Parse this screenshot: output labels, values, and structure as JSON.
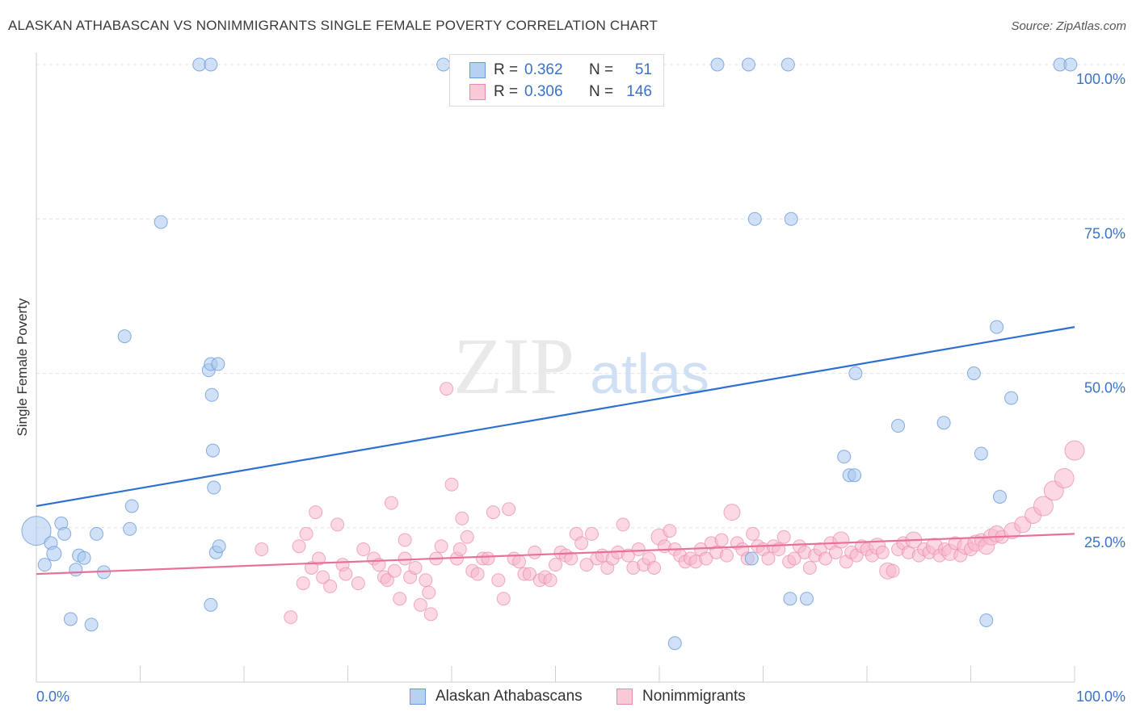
{
  "title": "ALASKAN ATHABASCAN VS NONIMMIGRANTS SINGLE FEMALE POVERTY CORRELATION CHART",
  "source": "Source: ZipAtlas.com",
  "watermark": {
    "zip": "ZIP",
    "atlas": "atlas"
  },
  "legend": {
    "rows": [
      {
        "r_label": "R =",
        "r_value": "0.362",
        "n_label": "N =",
        "n_value": "51",
        "color": "#a9c8f0",
        "border": "#6a9bd8"
      },
      {
        "r_label": "R =",
        "r_value": "0.306",
        "n_label": "N =",
        "n_value": "146",
        "color": "#f9bfd1",
        "border": "#e98aab"
      }
    ]
  },
  "bottom_legend": [
    {
      "label": "Alaskan Athabascans",
      "color": "#b7d1f3",
      "border": "#6a9bd8"
    },
    {
      "label": "Nonimmigrants",
      "color": "#f9c9d7",
      "border": "#e98aab"
    }
  ],
  "chart_data": {
    "type": "scatter",
    "title": "ALASKAN ATHABASCAN VS NONIMMIGRANTS SINGLE FEMALE POVERTY CORRELATION CHART",
    "xlabel": "",
    "ylabel": "Single Female Poverty",
    "xlim": [
      0,
      100
    ],
    "ylim": [
      0,
      102
    ],
    "x_tick_labels": [
      "0.0%",
      "100.0%"
    ],
    "y_tick_labels": [
      "25.0%",
      "50.0%",
      "75.0%",
      "100.0%"
    ],
    "y_ticks": [
      25,
      50,
      75,
      100
    ],
    "grid": true,
    "legend_position": "top-center",
    "colors": {
      "blue": "#2e6fd1",
      "pink": "#e8719a",
      "blue_fill": "#a9c8f0",
      "pink_fill": "#f7b8cc",
      "axis_text": "#3a72c9"
    },
    "series": [
      {
        "name": "Alaskan Athabascans",
        "color": "#2e6fd1",
        "trend": [
          [
            0,
            28.5
          ],
          [
            100,
            57.5
          ]
        ],
        "points": [
          [
            0.0,
            24.5,
            18
          ],
          [
            0.8,
            19.0,
            8
          ],
          [
            1.4,
            22.5,
            8
          ],
          [
            1.7,
            20.8,
            9
          ],
          [
            2.4,
            25.7,
            8
          ],
          [
            2.7,
            24.0,
            8
          ],
          [
            3.3,
            10.2,
            8
          ],
          [
            3.8,
            18.2,
            8
          ],
          [
            4.1,
            20.5,
            8
          ],
          [
            4.6,
            20.1,
            8
          ],
          [
            5.3,
            9.3,
            8
          ],
          [
            5.8,
            24.0,
            8
          ],
          [
            6.5,
            17.8,
            8
          ],
          [
            8.5,
            56.0,
            8
          ],
          [
            9.0,
            24.8,
            8
          ],
          [
            9.2,
            28.5,
            8
          ],
          [
            12.0,
            74.5,
            8
          ],
          [
            15.7,
            100,
            8
          ],
          [
            16.8,
            12.5,
            8
          ],
          [
            16.8,
            100,
            8
          ],
          [
            16.6,
            50.5,
            8
          ],
          [
            16.8,
            51.5,
            8
          ],
          [
            16.9,
            46.5,
            8
          ],
          [
            17.0,
            37.5,
            8
          ],
          [
            17.1,
            31.5,
            8
          ],
          [
            17.3,
            21.0,
            8
          ],
          [
            17.5,
            51.5,
            8
          ],
          [
            17.6,
            22.0,
            8
          ],
          [
            39.2,
            100,
            8
          ],
          [
            52.0,
            100,
            8
          ],
          [
            65.6,
            100,
            8
          ],
          [
            68.6,
            100,
            8
          ],
          [
            68.9,
            20.0,
            8
          ],
          [
            69.2,
            75.0,
            8
          ],
          [
            72.4,
            100,
            8
          ],
          [
            72.7,
            75.0,
            8
          ],
          [
            72.6,
            13.5,
            8
          ],
          [
            74.2,
            13.5,
            8
          ],
          [
            77.8,
            36.5,
            8
          ],
          [
            78.3,
            33.5,
            8
          ],
          [
            78.8,
            33.5,
            8
          ],
          [
            78.9,
            50.0,
            8
          ],
          [
            83.0,
            41.5,
            8
          ],
          [
            87.4,
            42.0,
            8
          ],
          [
            90.3,
            50.0,
            8
          ],
          [
            91.0,
            37.0,
            8
          ],
          [
            91.5,
            10.0,
            8
          ],
          [
            92.5,
            57.5,
            8
          ],
          [
            92.8,
            30.0,
            8
          ],
          [
            93.9,
            46.0,
            8
          ],
          [
            98.6,
            100,
            8
          ],
          [
            99.6,
            100,
            8
          ],
          [
            61.5,
            6.3,
            8
          ]
        ]
      },
      {
        "name": "Nonimmigrants",
        "color": "#e8719a",
        "trend": [
          [
            0,
            17.5
          ],
          [
            100,
            24.0
          ]
        ],
        "points": [
          [
            21.7,
            21.5,
            8
          ],
          [
            24.5,
            10.5,
            8
          ],
          [
            25.3,
            22.0,
            8
          ],
          [
            25.7,
            16.0,
            8
          ],
          [
            26.0,
            24.0,
            8
          ],
          [
            26.5,
            18.5,
            8
          ],
          [
            26.9,
            27.5,
            8
          ],
          [
            27.2,
            20.0,
            8
          ],
          [
            27.6,
            17.0,
            8
          ],
          [
            28.3,
            15.5,
            8
          ],
          [
            29.0,
            25.5,
            8
          ],
          [
            29.5,
            19.0,
            8
          ],
          [
            29.8,
            17.5,
            8
          ],
          [
            31.0,
            16.0,
            8
          ],
          [
            31.5,
            21.5,
            8
          ],
          [
            32.5,
            20.0,
            8
          ],
          [
            33.0,
            19.0,
            8
          ],
          [
            33.5,
            17.0,
            8
          ],
          [
            33.8,
            16.5,
            8
          ],
          [
            34.2,
            29.0,
            8
          ],
          [
            34.5,
            18.0,
            8
          ],
          [
            35.0,
            13.5,
            8
          ],
          [
            35.5,
            20.0,
            8
          ],
          [
            36.0,
            17.0,
            8
          ],
          [
            36.5,
            18.5,
            8
          ],
          [
            37.0,
            12.5,
            8
          ],
          [
            37.5,
            16.5,
            8
          ],
          [
            38.0,
            11.0,
            8
          ],
          [
            38.5,
            20.0,
            8
          ],
          [
            39.0,
            22.0,
            8
          ],
          [
            39.5,
            47.5,
            8
          ],
          [
            40.0,
            32.0,
            8
          ],
          [
            40.5,
            20.0,
            8
          ],
          [
            41.0,
            26.5,
            8
          ],
          [
            41.5,
            23.5,
            8
          ],
          [
            42.0,
            18.0,
            8
          ],
          [
            42.5,
            17.5,
            8
          ],
          [
            43.0,
            20.0,
            8
          ],
          [
            43.5,
            20.0,
            8
          ],
          [
            44.0,
            27.5,
            8
          ],
          [
            44.5,
            16.5,
            8
          ],
          [
            45.0,
            13.5,
            8
          ],
          [
            45.5,
            28.0,
            8
          ],
          [
            46.0,
            20.0,
            8
          ],
          [
            46.5,
            19.5,
            8
          ],
          [
            47.0,
            17.5,
            8
          ],
          [
            47.5,
            17.5,
            8
          ],
          [
            48.0,
            21.0,
            8
          ],
          [
            48.5,
            16.5,
            8
          ],
          [
            49.0,
            17.0,
            8
          ],
          [
            49.5,
            16.5,
            8
          ],
          [
            50.0,
            19.0,
            8
          ],
          [
            50.5,
            21.0,
            8
          ],
          [
            51.0,
            20.5,
            8
          ],
          [
            51.5,
            20.0,
            8
          ],
          [
            52.0,
            24.0,
            8
          ],
          [
            52.5,
            22.5,
            8
          ],
          [
            53.0,
            19.0,
            8
          ],
          [
            53.5,
            24.0,
            8
          ],
          [
            54.0,
            20.0,
            8
          ],
          [
            54.5,
            20.5,
            8
          ],
          [
            55.0,
            18.5,
            8
          ],
          [
            55.5,
            20.0,
            8
          ],
          [
            56.0,
            21.0,
            8
          ],
          [
            56.5,
            25.5,
            8
          ],
          [
            57.0,
            20.5,
            8
          ],
          [
            57.5,
            18.5,
            8
          ],
          [
            58.0,
            21.5,
            8
          ],
          [
            58.5,
            19.0,
            8
          ],
          [
            59.0,
            20.0,
            8
          ],
          [
            59.5,
            18.5,
            8
          ],
          [
            60.0,
            23.5,
            10
          ],
          [
            60.5,
            22.0,
            8
          ],
          [
            61.0,
            24.5,
            8
          ],
          [
            61.5,
            21.5,
            8
          ],
          [
            62.0,
            20.5,
            8
          ],
          [
            62.5,
            19.5,
            8
          ],
          [
            63.0,
            20.0,
            8
          ],
          [
            63.5,
            19.5,
            8
          ],
          [
            64.0,
            21.5,
            8
          ],
          [
            64.5,
            20.0,
            8
          ],
          [
            65.0,
            22.5,
            8
          ],
          [
            65.5,
            21.0,
            8
          ],
          [
            66.0,
            23.0,
            8
          ],
          [
            66.5,
            20.5,
            8
          ],
          [
            67.0,
            27.5,
            10
          ],
          [
            67.5,
            22.5,
            8
          ],
          [
            68.0,
            21.5,
            8
          ],
          [
            68.5,
            20.0,
            8
          ],
          [
            69.0,
            24.0,
            8
          ],
          [
            69.5,
            22.0,
            8
          ],
          [
            70.0,
            21.5,
            8
          ],
          [
            70.5,
            20.0,
            8
          ],
          [
            71.0,
            22.0,
            8
          ],
          [
            71.5,
            21.5,
            8
          ],
          [
            72.0,
            23.5,
            8
          ],
          [
            72.5,
            19.5,
            8
          ],
          [
            73.0,
            20.0,
            8
          ],
          [
            73.5,
            22.0,
            8
          ],
          [
            74.0,
            21.0,
            8
          ],
          [
            74.5,
            18.5,
            8
          ],
          [
            75.0,
            20.5,
            8
          ],
          [
            75.5,
            21.5,
            8
          ],
          [
            76.0,
            20.0,
            8
          ],
          [
            76.5,
            22.5,
            8
          ],
          [
            77.0,
            21.0,
            8
          ],
          [
            77.5,
            23.0,
            10
          ],
          [
            78.0,
            19.5,
            8
          ],
          [
            78.5,
            21.0,
            8
          ],
          [
            79.0,
            20.5,
            8
          ],
          [
            79.5,
            22.0,
            8
          ],
          [
            80.0,
            21.5,
            8
          ],
          [
            80.5,
            20.5,
            8
          ],
          [
            81.0,
            22.0,
            10
          ],
          [
            81.5,
            21.0,
            8
          ],
          [
            82.0,
            18.0,
            10
          ],
          [
            82.5,
            18.0,
            8
          ],
          [
            83.0,
            21.5,
            8
          ],
          [
            83.5,
            22.5,
            8
          ],
          [
            84.0,
            21.0,
            8
          ],
          [
            84.5,
            23.0,
            10
          ],
          [
            85.0,
            20.5,
            8
          ],
          [
            85.5,
            21.5,
            8
          ],
          [
            86.0,
            21.0,
            8
          ],
          [
            86.5,
            22.0,
            10
          ],
          [
            87.0,
            20.5,
            8
          ],
          [
            87.5,
            21.5,
            8
          ],
          [
            88.0,
            21.0,
            10
          ],
          [
            88.5,
            22.5,
            8
          ],
          [
            89.0,
            20.5,
            8
          ],
          [
            89.5,
            22.0,
            10
          ],
          [
            90.0,
            21.5,
            8
          ],
          [
            90.5,
            22.5,
            10
          ],
          [
            91.0,
            23.0,
            8
          ],
          [
            91.5,
            22.0,
            10
          ],
          [
            92.0,
            23.5,
            10
          ],
          [
            92.5,
            24.0,
            10
          ],
          [
            93.0,
            23.5,
            8
          ],
          [
            94.0,
            24.5,
            10
          ],
          [
            95.0,
            25.5,
            10
          ],
          [
            96.0,
            27.0,
            10
          ],
          [
            97.0,
            28.5,
            12
          ],
          [
            98.0,
            31.0,
            12
          ],
          [
            99.0,
            33.0,
            12
          ],
          [
            100.0,
            37.5,
            12
          ],
          [
            35.5,
            23.0,
            8
          ],
          [
            40.8,
            21.5,
            8
          ],
          [
            37.8,
            14.5,
            8
          ]
        ]
      }
    ]
  }
}
